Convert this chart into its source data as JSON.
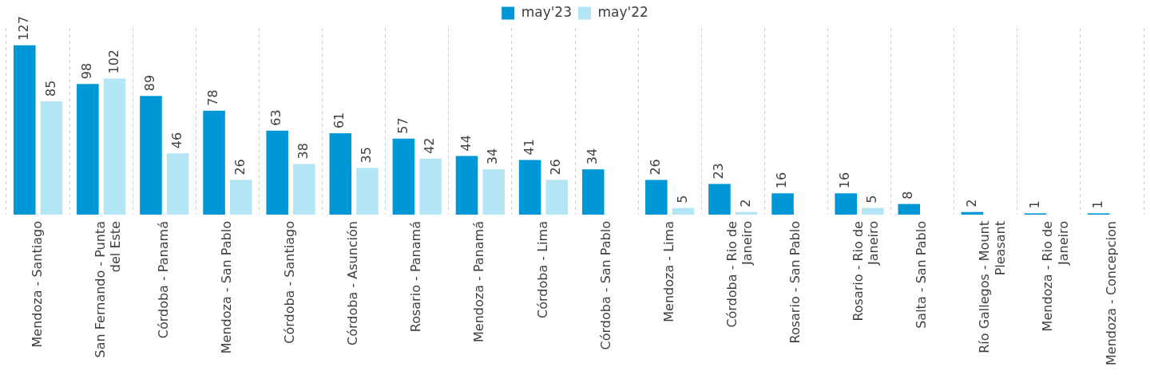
{
  "chart_data": {
    "type": "bar",
    "categories": [
      "Mendoza - Santiago",
      "San Fernando - Punta del Este",
      "Córdoba - Panamá",
      "Mendoza - San Pablo",
      "Córdoba - Santiago",
      "Córdoba - Asunción",
      "Rosario - Panamá",
      "Mendoza - Panamá",
      "Córdoba - Lima",
      "Córdoba - San Pablo",
      "Mendoza - Lima",
      "Córdoba - Rio de Janeiro",
      "Rosario - San Pablo",
      "Rosario - Rio de Janeiro",
      "Salta - San Pablo",
      "Río Gallegos - Mount Pleasant",
      "Mendoza - Rio de Janeiro",
      "Mendoza - Concepcion"
    ],
    "series": [
      {
        "name": "may'23",
        "color": "#0097d6",
        "values": [
          127,
          98,
          89,
          78,
          63,
          61,
          57,
          44,
          41,
          34,
          26,
          23,
          16,
          16,
          8,
          2,
          1,
          1
        ]
      },
      {
        "name": "may'22",
        "color": "#b3e5f5",
        "values": [
          85,
          102,
          46,
          26,
          38,
          35,
          42,
          34,
          26,
          null,
          5,
          2,
          null,
          5,
          null,
          null,
          null,
          null
        ]
      }
    ],
    "data_labels": true,
    "grid": "x",
    "legend": "top",
    "tick_labels": "x"
  }
}
